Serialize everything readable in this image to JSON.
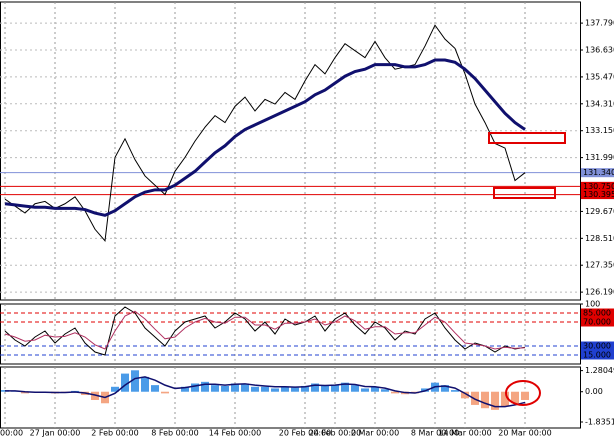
{
  "chart_data": [
    {
      "type": "line",
      "categories": [
        "00:00",
        null,
        null,
        null,
        null,
        "27 Jan 00:00",
        null,
        null,
        null,
        null,
        null,
        "2 Feb 00:00",
        null,
        null,
        null,
        null,
        null,
        "8 Feb 00:00",
        null,
        null,
        null,
        null,
        null,
        "14 Feb 00:00",
        null,
        null,
        null,
        null,
        null,
        null,
        "20 Feb 00:00",
        null,
        null,
        "24 Feb 00:00",
        null,
        null,
        null,
        "2 Mar 00:00",
        null,
        null,
        null,
        null,
        null,
        "8 Mar 00:00",
        null,
        null,
        "14 Mar 00:00",
        null,
        null,
        null,
        null,
        null,
        "20 Mar 00:00"
      ],
      "series": [
        {
          "color": "#000000",
          "values": [
            130.2,
            129.9,
            129.6,
            130.0,
            130.1,
            129.8,
            130.0,
            130.3,
            129.7,
            128.9,
            128.4,
            132.0,
            132.8,
            131.9,
            131.2,
            130.8,
            130.4,
            131.4,
            132.0,
            132.7,
            133.3,
            133.8,
            133.5,
            134.2,
            134.6,
            134.0,
            134.5,
            134.3,
            134.8,
            134.5,
            135.3,
            136.0,
            135.6,
            136.3,
            136.9,
            136.6,
            136.3,
            137.0,
            136.3,
            135.8,
            135.9,
            136.0,
            136.8,
            137.7,
            137.1,
            136.7,
            135.6,
            134.3,
            133.5,
            132.6,
            132.4,
            131.0,
            131.34
          ]
        },
        {
          "color": "#10106e",
          "values": [
            130.0,
            129.95,
            129.9,
            129.85,
            129.85,
            129.8,
            129.8,
            129.8,
            129.75,
            129.6,
            129.5,
            129.7,
            130.0,
            130.3,
            130.5,
            130.6,
            130.6,
            130.8,
            131.1,
            131.4,
            131.8,
            132.2,
            132.5,
            132.9,
            133.2,
            133.4,
            133.6,
            133.8,
            134.0,
            134.2,
            134.4,
            134.7,
            134.9,
            135.2,
            135.5,
            135.7,
            135.8,
            136.0,
            136.0,
            136.0,
            135.9,
            135.9,
            136.0,
            136.2,
            136.2,
            136.1,
            135.8,
            135.4,
            134.9,
            134.4,
            133.9,
            133.5,
            133.2
          ]
        }
      ],
      "ylim": [
        125.85,
        138.7
      ],
      "yticks": [
        {
          "value": 137.79,
          "label": "137.790"
        },
        {
          "value": 136.63,
          "label": "136.630"
        },
        {
          "value": 135.47,
          "label": "135.470"
        },
        {
          "value": 134.31,
          "label": "134.310"
        },
        {
          "value": 133.15,
          "label": "133.150"
        },
        {
          "value": 131.99,
          "label": "131.990"
        },
        {
          "value": 129.67,
          "label": "129.670"
        },
        {
          "value": 128.51,
          "label": "128.510"
        },
        {
          "value": 127.35,
          "label": "127.350"
        },
        {
          "value": 126.19,
          "label": "126.190"
        }
      ],
      "levels": [
        {
          "value": 131.34,
          "label": "131.340",
          "color": "#8090d8"
        },
        {
          "value": 130.75,
          "label": "130.750",
          "color": "#e00000"
        },
        {
          "value": 130.395,
          "label": "130.395",
          "color": "#e00000"
        }
      ],
      "grid": true
    },
    {
      "type": "line",
      "series": [
        {
          "color": "#000000",
          "values": [
            55,
            40,
            30,
            45,
            55,
            35,
            50,
            60,
            35,
            20,
            15,
            80,
            95,
            85,
            60,
            45,
            30,
            55,
            70,
            75,
            80,
            60,
            70,
            85,
            75,
            55,
            70,
            50,
            75,
            65,
            70,
            80,
            55,
            75,
            85,
            65,
            50,
            70,
            60,
            40,
            55,
            50,
            75,
            85,
            60,
            40,
            25,
            35,
            30,
            20,
            30,
            25,
            28
          ]
        },
        {
          "color": "#b03060",
          "values": [
            50,
            45,
            38,
            40,
            48,
            45,
            46,
            52,
            45,
            32,
            25,
            55,
            80,
            88,
            75,
            58,
            42,
            45,
            60,
            70,
            76,
            70,
            68,
            78,
            78,
            65,
            65,
            58,
            68,
            68,
            70,
            75,
            65,
            70,
            80,
            72,
            58,
            62,
            62,
            50,
            52,
            52,
            65,
            78,
            70,
            52,
            35,
            33,
            30,
            25,
            28,
            26,
            27
          ]
        }
      ],
      "ylim": [
        0,
        100
      ],
      "yticks": [
        100,
        {
          "value": 85,
          "label": "85.000",
          "color": "#e00000"
        },
        {
          "value": 70,
          "label": "70.000",
          "color": "#e00000"
        },
        {
          "value": 30,
          "label": "30.000",
          "color": "#2040d0"
        },
        {
          "value": 15,
          "label": "15.000",
          "color": "#2040d0"
        }
      ]
    },
    {
      "type": "bar",
      "series": [
        {
          "color": "#4a9be8",
          "negative_color": "#f4a582",
          "values": [
            0.1,
            0.05,
            -0.1,
            -0.05,
            0.0,
            -0.1,
            -0.05,
            0.05,
            -0.2,
            -0.5,
            -0.7,
            0.3,
            1.1,
            1.3,
            0.9,
            0.4,
            -0.1,
            0.0,
            0.3,
            0.5,
            0.6,
            0.4,
            0.35,
            0.5,
            0.5,
            0.3,
            0.3,
            0.2,
            0.3,
            0.25,
            0.35,
            0.5,
            0.35,
            0.4,
            0.55,
            0.4,
            0.2,
            0.3,
            0.15,
            -0.1,
            -0.15,
            -0.1,
            0.2,
            0.55,
            0.4,
            0.1,
            -0.4,
            -0.8,
            -1.0,
            -1.1,
            -0.9,
            -0.7,
            -0.5
          ]
        },
        {
          "type": "line",
          "color": "#10106e",
          "values": [
            0.05,
            0.05,
            0.0,
            -0.03,
            -0.03,
            -0.05,
            -0.05,
            -0.02,
            -0.08,
            -0.2,
            -0.35,
            -0.1,
            0.4,
            0.8,
            0.9,
            0.7,
            0.4,
            0.2,
            0.25,
            0.35,
            0.45,
            0.45,
            0.4,
            0.45,
            0.48,
            0.4,
            0.35,
            0.3,
            0.3,
            0.28,
            0.3,
            0.4,
            0.38,
            0.4,
            0.47,
            0.44,
            0.32,
            0.3,
            0.22,
            0.05,
            -0.05,
            -0.08,
            0.05,
            0.3,
            0.35,
            0.22,
            -0.1,
            -0.45,
            -0.7,
            -0.9,
            -0.9,
            -0.8,
            -0.65
          ]
        }
      ],
      "ylim": [
        -2.2,
        1.5
      ],
      "yticks": [
        1.28049,
        {
          "value": 0,
          "label": "0.00"
        },
        -1.83514
      ]
    }
  ]
}
